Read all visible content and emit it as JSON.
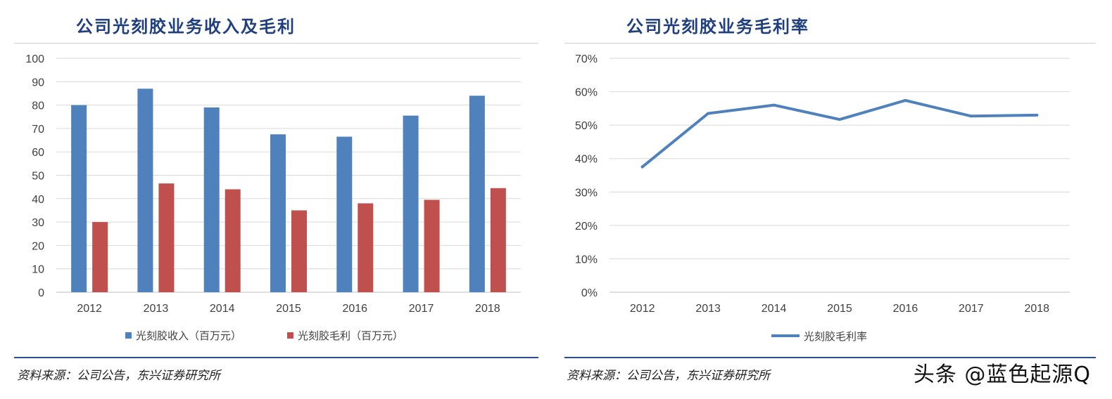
{
  "left_panel": {
    "title": "公司光刻胶业务收入及毛利",
    "source": "资料来源：公司公告，东兴证券研究所"
  },
  "right_panel": {
    "title": "公司光刻胶业务毛利率",
    "source": "资料来源：公司公告，东兴证券研究所"
  },
  "watermark": "头条 @蓝色起源Q",
  "chart_data": [
    {
      "type": "bar",
      "categories": [
        "2012",
        "2013",
        "2014",
        "2015",
        "2016",
        "2017",
        "2018"
      ],
      "series": [
        {
          "name": "光刻胶收入（百万元）",
          "color": "#4f81bd",
          "values": [
            80,
            87,
            79,
            67.5,
            66.5,
            75.5,
            84
          ]
        },
        {
          "name": "光刻胶毛利（百万元）",
          "color": "#c0504d",
          "values": [
            30,
            46.5,
            44,
            35,
            38,
            39.5,
            44.5
          ]
        }
      ],
      "yticks": [
        "0",
        "10",
        "20",
        "30",
        "40",
        "50",
        "60",
        "70",
        "80",
        "90",
        "100"
      ],
      "ylim": [
        0,
        100
      ],
      "grid": true,
      "legend": "bottom"
    },
    {
      "type": "line",
      "categories": [
        "2012",
        "2013",
        "2014",
        "2015",
        "2016",
        "2017",
        "2018"
      ],
      "series": [
        {
          "name": "光刻胶毛利率",
          "color": "#4f81bd",
          "values": [
            37.5,
            53.5,
            56,
            51.7,
            57.4,
            52.7,
            53
          ]
        }
      ],
      "yticks": [
        "0%",
        "10%",
        "20%",
        "30%",
        "40%",
        "50%",
        "60%",
        "70%"
      ],
      "ylim": [
        0,
        70
      ],
      "grid": true,
      "legend": "bottom"
    }
  ]
}
